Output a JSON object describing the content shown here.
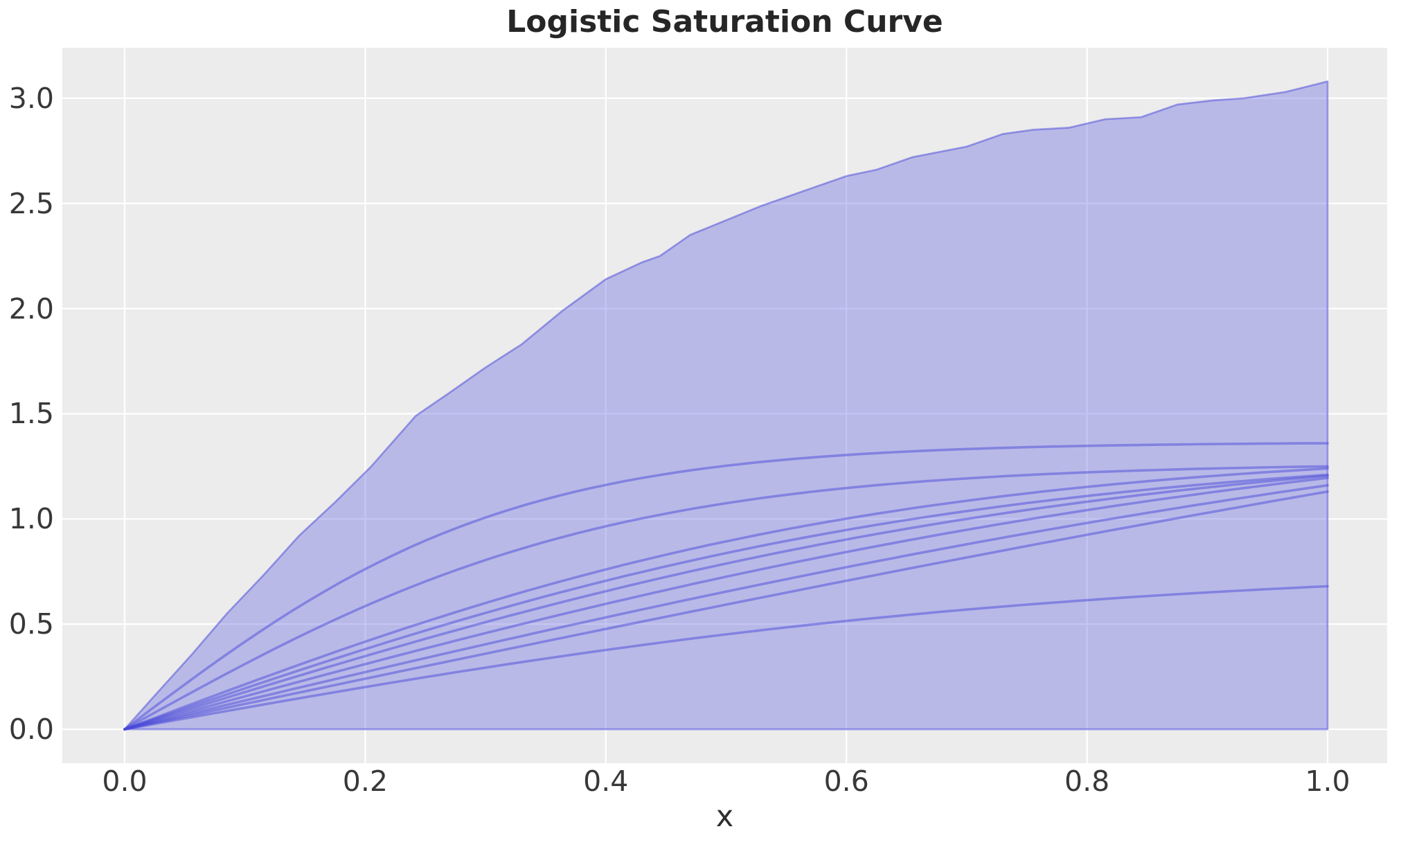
{
  "chart_data": {
    "type": "line",
    "title": "Logistic Saturation Curve",
    "xlabel": "x",
    "ylabel": "",
    "grid": true,
    "legend": false,
    "xlim": [
      -0.0518,
      1.0495
    ],
    "ylim": [
      -0.1613,
      3.2399
    ],
    "x_ticks": {
      "values": [
        0.0,
        0.2,
        0.4,
        0.6,
        0.8,
        1.0
      ],
      "labels": [
        "0.0",
        "0.2",
        "0.4",
        "0.6",
        "0.8",
        "1.0"
      ]
    },
    "y_ticks": {
      "values": [
        0.0,
        0.5,
        1.0,
        1.5,
        2.0,
        2.5,
        3.0
      ],
      "labels": [
        "0.0",
        "0.5",
        "1.0",
        "1.5",
        "2.0",
        "2.5",
        "3.0"
      ]
    },
    "colors": {
      "plot_background": "#ececec",
      "grid": "#ffffff",
      "band_fill": "rgba(110,110,228,0.40)",
      "band_edge": "rgba(72,72,216,0.50)",
      "curve": "rgba(72,72,216,0.48)",
      "title": "#262626",
      "tick": "#383838"
    },
    "band": {
      "lower": 0.0,
      "upper_points": [
        [
          0.0,
          0.0
        ],
        [
          0.025,
          0.16
        ],
        [
          0.055,
          0.35
        ],
        [
          0.085,
          0.55
        ],
        [
          0.115,
          0.73
        ],
        [
          0.145,
          0.92
        ],
        [
          0.175,
          1.08
        ],
        [
          0.205,
          1.25
        ],
        [
          0.242,
          1.49
        ],
        [
          0.27,
          1.6
        ],
        [
          0.3,
          1.72
        ],
        [
          0.33,
          1.83
        ],
        [
          0.364,
          1.99
        ],
        [
          0.4,
          2.14
        ],
        [
          0.43,
          2.22
        ],
        [
          0.445,
          2.25
        ],
        [
          0.47,
          2.35
        ],
        [
          0.5,
          2.42
        ],
        [
          0.53,
          2.49
        ],
        [
          0.56,
          2.55
        ],
        [
          0.6,
          2.63
        ],
        [
          0.625,
          2.66
        ],
        [
          0.655,
          2.72
        ],
        [
          0.7,
          2.77
        ],
        [
          0.73,
          2.83
        ],
        [
          0.755,
          2.85
        ],
        [
          0.785,
          2.86
        ],
        [
          0.815,
          2.9
        ],
        [
          0.845,
          2.91
        ],
        [
          0.875,
          2.97
        ],
        [
          0.905,
          2.99
        ],
        [
          0.93,
          3.0
        ],
        [
          0.965,
          3.03
        ],
        [
          1.0,
          3.08
        ]
      ]
    },
    "curves": {
      "model": "y = value_at_1 * tanh(lam*x/2) / tanh(lam/2)",
      "x_range": [
        0.0,
        1.0
      ],
      "samples": [
        {
          "lam": 6.3,
          "value_at_1": 1.36
        },
        {
          "lam": 5.0,
          "value_at_1": 1.25
        },
        {
          "lam": 3.2,
          "value_at_1": 1.24
        },
        {
          "lam": 2.9,
          "value_at_1": 1.21
        },
        {
          "lam": 2.5,
          "value_at_1": 1.205
        },
        {
          "lam": 2.0,
          "value_at_1": 1.195
        },
        {
          "lam": 1.5,
          "value_at_1": 1.16
        },
        {
          "lam": 0.9,
          "value_at_1": 1.13
        },
        {
          "lam": 2.6,
          "value_at_1": 0.68
        }
      ]
    }
  }
}
